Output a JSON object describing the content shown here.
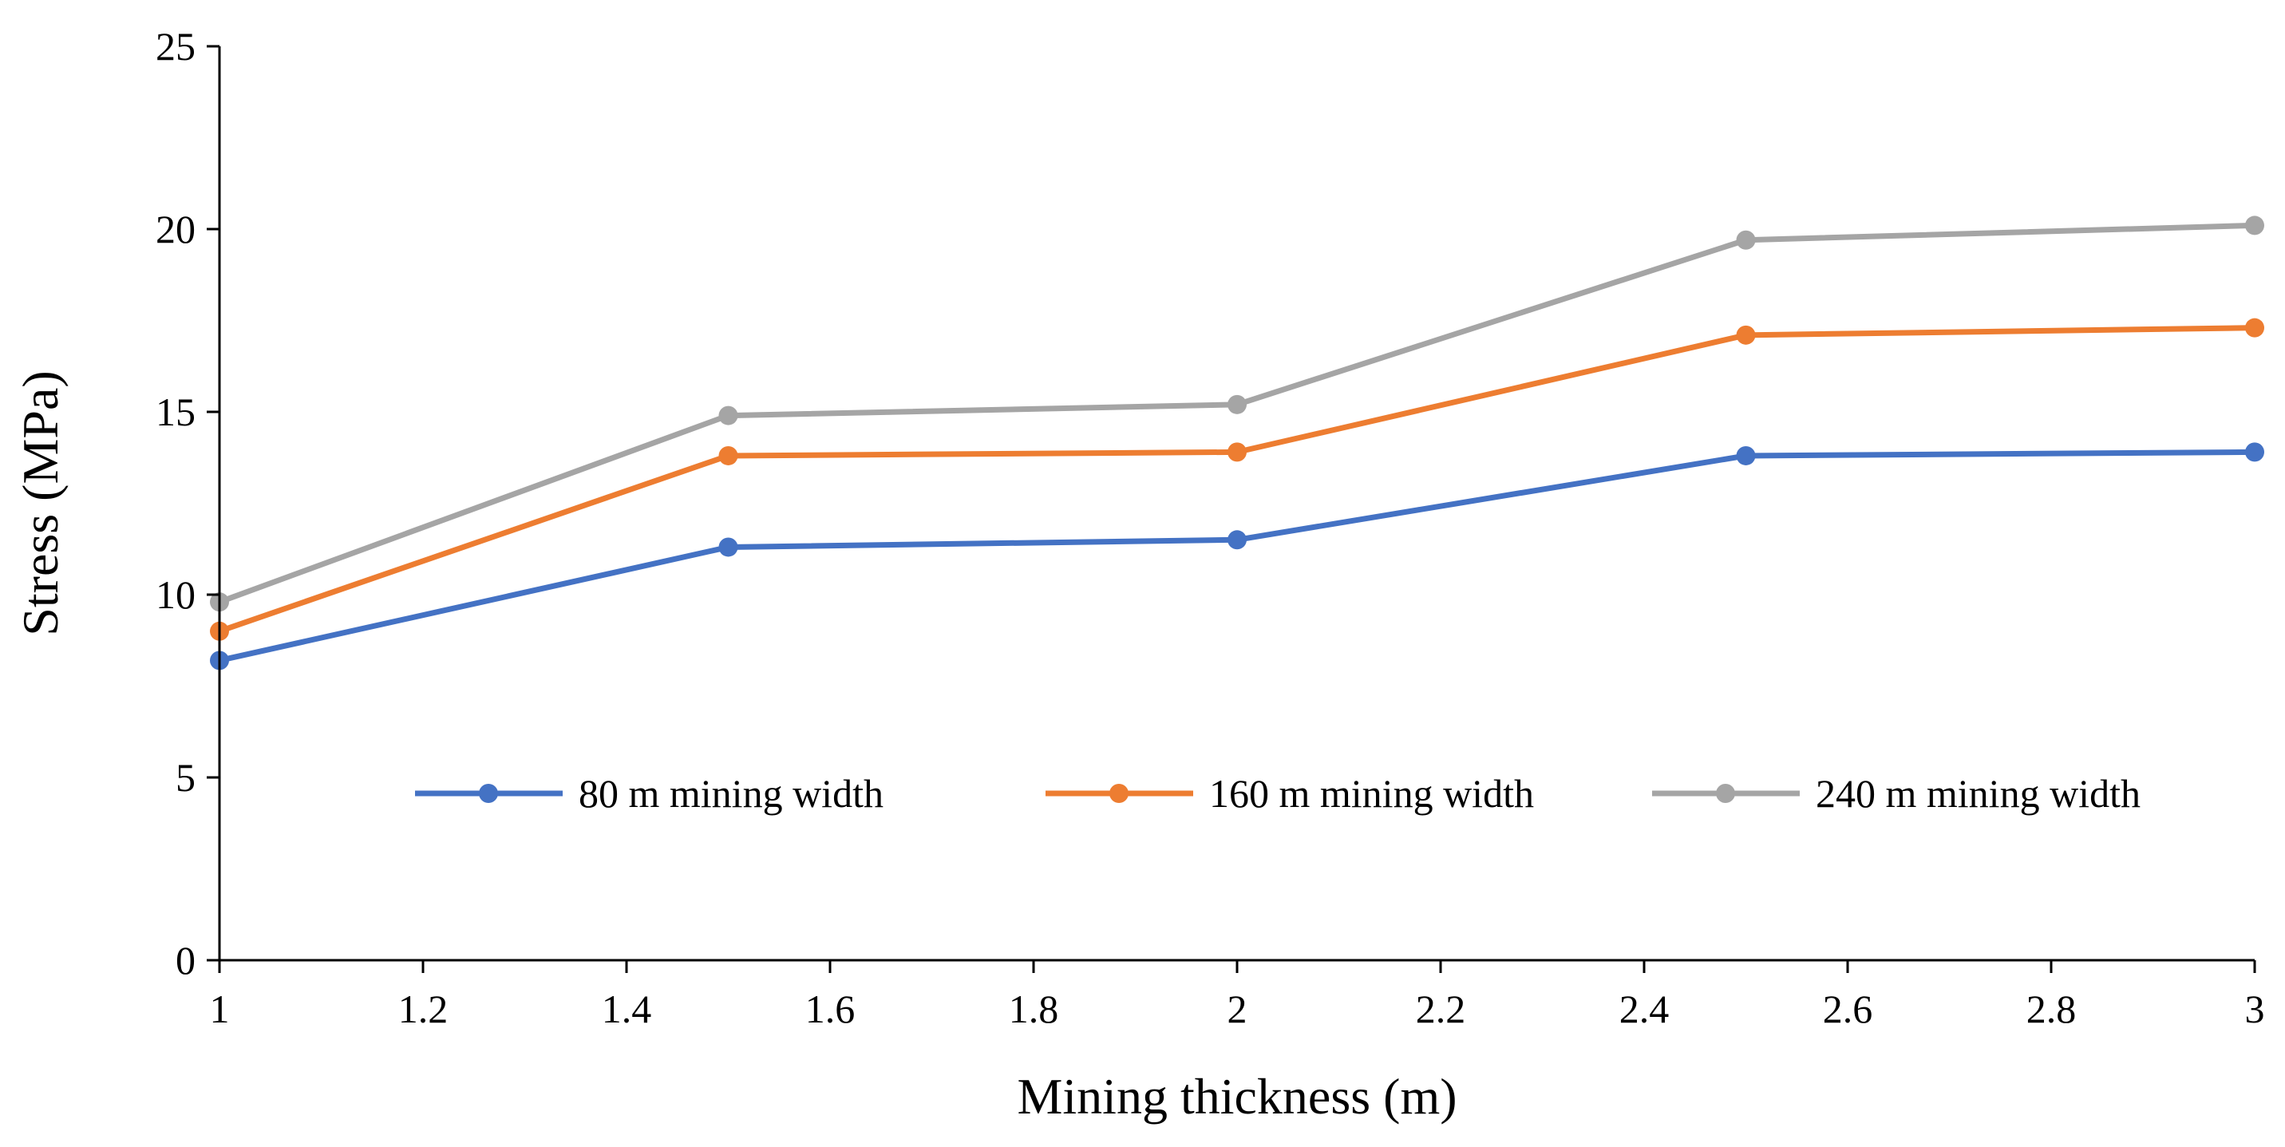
{
  "chart_data": {
    "type": "line",
    "title": "",
    "xlabel": "Mining thickness (m)",
    "ylabel": "Stress (MPa)",
    "xlim": [
      1,
      3
    ],
    "ylim": [
      0,
      25
    ],
    "x_ticks": [
      1,
      1.2,
      1.4,
      1.6,
      1.8,
      2,
      2.2,
      2.4,
      2.6,
      2.8,
      3
    ],
    "x_tick_labels": [
      "1",
      "1.2",
      "1.4",
      "1.6",
      "1.8",
      "2",
      "2.2",
      "2.4",
      "2.6",
      "2.8",
      "3"
    ],
    "y_ticks": [
      0,
      5,
      10,
      15,
      20,
      25
    ],
    "y_tick_labels": [
      "0",
      "5",
      "10",
      "15",
      "20",
      "25"
    ],
    "grid": false,
    "legend_position": "inside-bottom",
    "x": [
      1,
      1.5,
      2,
      2.5,
      3
    ],
    "series": [
      {
        "name": "80 m mining width",
        "color": "#4472C4",
        "values": [
          8.2,
          11.3,
          11.5,
          13.8,
          13.9
        ]
      },
      {
        "name": "160 m mining width",
        "color": "#ED7D31",
        "values": [
          9.0,
          13.8,
          13.9,
          17.1,
          17.3
        ]
      },
      {
        "name": "240 m mining width",
        "color": "#A5A5A5",
        "values": [
          9.8,
          14.9,
          15.2,
          19.7,
          20.1
        ]
      }
    ]
  }
}
